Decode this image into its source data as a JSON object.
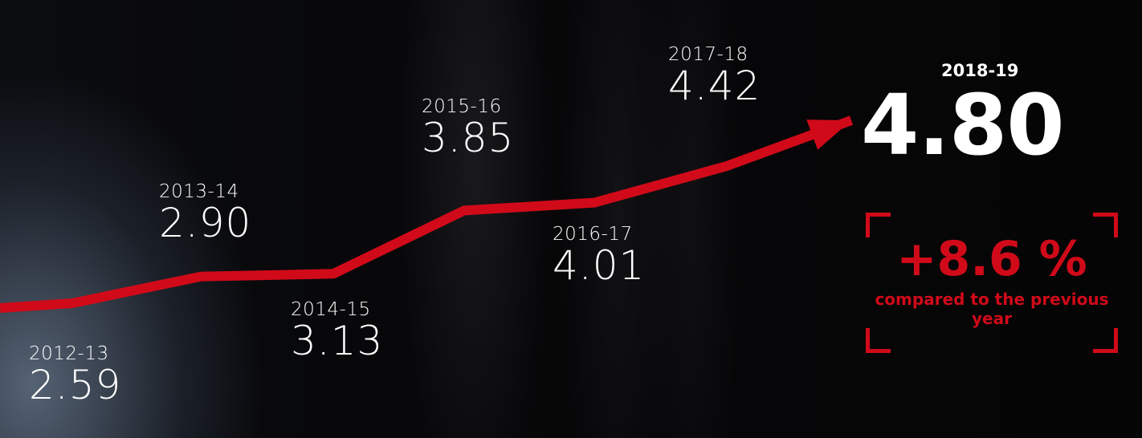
{
  "chart_data": {
    "type": "line",
    "categories": [
      "2012-13",
      "2013-14",
      "2014-15",
      "2015-16",
      "2016-17",
      "2017-18",
      "2018-19"
    ],
    "values": [
      2.59,
      2.9,
      3.13,
      3.85,
      4.01,
      4.42,
      4.8
    ],
    "value_labels": [
      "2.59",
      "2.90",
      "3.13",
      "3.85",
      "4.01",
      "4.42",
      "4.80"
    ],
    "title": "",
    "xlabel": "",
    "ylabel": "",
    "grid": false,
    "line_color": "#d10a19",
    "highlight": {
      "period": "2018-19",
      "value": "4.80"
    }
  },
  "change": {
    "value": "+8.6 %",
    "note": "compared to the previous year",
    "color": "#d10a19"
  }
}
